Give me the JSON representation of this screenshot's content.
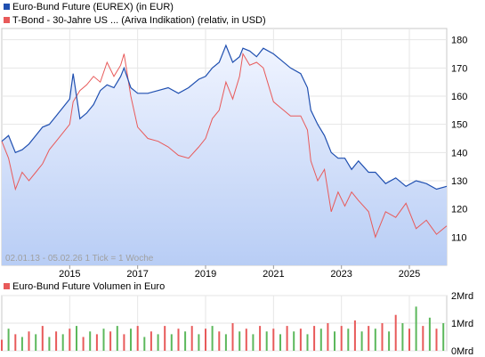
{
  "chart_data": [
    {
      "type": "line",
      "legend": [
        {
          "label": "Euro-Bund Future (EUREX)  (in EUR)",
          "color": "#1f4fb0"
        },
        {
          "label": "T-Bond - 30-Jahre US ...  (Ariva Indikation)  (relativ, in USD)",
          "color": "#e85a5a"
        }
      ],
      "x_labels": [
        "2015",
        "2017",
        "2019",
        "2021",
        "2023",
        "2025"
      ],
      "y_ticks": [
        110,
        120,
        130,
        140,
        150,
        160,
        170,
        180
      ],
      "ylim": [
        100,
        184
      ],
      "xlim": [
        2013.0,
        2026.1
      ],
      "grid": true,
      "note": "02.01.13 - 05.02.26    1 Tick = 1 Woche",
      "series": [
        {
          "name": "Euro-Bund Future (EUREX)",
          "color": "#1f4fb0",
          "x": [
            2013.0,
            2013.2,
            2013.4,
            2013.6,
            2013.8,
            2014.0,
            2014.2,
            2014.4,
            2014.6,
            2014.8,
            2015.0,
            2015.1,
            2015.3,
            2015.5,
            2015.7,
            2015.9,
            2016.1,
            2016.3,
            2016.5,
            2016.6,
            2016.8,
            2017.0,
            2017.3,
            2017.6,
            2017.9,
            2018.2,
            2018.5,
            2018.8,
            2019.0,
            2019.2,
            2019.4,
            2019.6,
            2019.8,
            2020.0,
            2020.1,
            2020.3,
            2020.5,
            2020.7,
            2021.0,
            2021.2,
            2021.5,
            2021.8,
            2022.0,
            2022.1,
            2022.3,
            2022.5,
            2022.7,
            2022.9,
            2023.1,
            2023.3,
            2023.5,
            2023.8,
            2024.0,
            2024.3,
            2024.6,
            2024.9,
            2025.2,
            2025.5,
            2025.8,
            2026.1
          ],
          "y": [
            144,
            146,
            140,
            141,
            143,
            146,
            149,
            150,
            153,
            156,
            159,
            168,
            152,
            154,
            157,
            162,
            164,
            163,
            167,
            170,
            163,
            161,
            161,
            162,
            163,
            161,
            163,
            166,
            167,
            170,
            172,
            178,
            172,
            174,
            177,
            176,
            174,
            177,
            175,
            173,
            170,
            168,
            163,
            155,
            150,
            146,
            140,
            138,
            138,
            134,
            137,
            133,
            133,
            129,
            131,
            128,
            130,
            129,
            127,
            128
          ]
        },
        {
          "name": "T-Bond - 30-Jahre US ...",
          "color": "#e85a5a",
          "x": [
            2013.0,
            2013.2,
            2013.4,
            2013.6,
            2013.8,
            2014.0,
            2014.2,
            2014.4,
            2014.6,
            2014.8,
            2015.0,
            2015.1,
            2015.3,
            2015.5,
            2015.7,
            2015.9,
            2016.1,
            2016.3,
            2016.5,
            2016.6,
            2016.8,
            2017.0,
            2017.3,
            2017.6,
            2017.9,
            2018.2,
            2018.5,
            2018.8,
            2019.0,
            2019.2,
            2019.4,
            2019.6,
            2019.8,
            2020.0,
            2020.1,
            2020.3,
            2020.5,
            2020.7,
            2021.0,
            2021.2,
            2021.5,
            2021.8,
            2022.0,
            2022.1,
            2022.3,
            2022.5,
            2022.7,
            2022.9,
            2023.1,
            2023.3,
            2023.5,
            2023.8,
            2024.0,
            2024.3,
            2024.6,
            2024.9,
            2025.2,
            2025.5,
            2025.8,
            2026.1
          ],
          "y": [
            144,
            138,
            127,
            133,
            130,
            133,
            136,
            141,
            144,
            147,
            150,
            158,
            162,
            164,
            167,
            165,
            172,
            167,
            171,
            175,
            160,
            149,
            145,
            144,
            142,
            139,
            138,
            142,
            145,
            152,
            155,
            165,
            159,
            167,
            175,
            171,
            172,
            170,
            158,
            156,
            153,
            153,
            148,
            137,
            130,
            134,
            119,
            126,
            121,
            126,
            123,
            119,
            110,
            119,
            117,
            122,
            113,
            116,
            111,
            114
          ]
        }
      ]
    },
    {
      "type": "bar",
      "legend": [
        {
          "label": "Euro-Bund Future Volumen in Euro",
          "color": "#e85a5a"
        }
      ],
      "y_ticks": [
        "0Mrd",
        "1Mrd",
        "2Mrd"
      ],
      "ylim": [
        0,
        2
      ],
      "series": [
        {
          "name": "Euro-Bund Future Volumen in Euro",
          "x": [
            2013.0,
            2013.2,
            2013.4,
            2013.6,
            2013.8,
            2014.0,
            2014.2,
            2014.4,
            2014.6,
            2014.8,
            2015.0,
            2015.2,
            2015.4,
            2015.6,
            2015.8,
            2016.0,
            2016.2,
            2016.4,
            2016.6,
            2016.8,
            2017.0,
            2017.2,
            2017.4,
            2017.6,
            2017.8,
            2018.0,
            2018.2,
            2018.4,
            2018.6,
            2018.8,
            2019.0,
            2019.2,
            2019.4,
            2019.6,
            2019.8,
            2020.0,
            2020.2,
            2020.4,
            2020.6,
            2020.8,
            2021.0,
            2021.2,
            2021.4,
            2021.6,
            2021.8,
            2022.0,
            2022.2,
            2022.4,
            2022.6,
            2022.8,
            2023.0,
            2023.2,
            2023.4,
            2023.6,
            2023.8,
            2024.0,
            2024.2,
            2024.4,
            2024.6,
            2024.8,
            2025.0,
            2025.2,
            2025.4,
            2025.6,
            2025.8,
            2026.0
          ],
          "values": [
            0.4,
            0.8,
            0.6,
            0.5,
            0.7,
            0.6,
            0.9,
            0.5,
            0.7,
            0.6,
            0.8,
            0.9,
            0.5,
            0.7,
            0.6,
            0.8,
            0.7,
            0.9,
            0.6,
            0.8,
            0.9,
            0.5,
            0.7,
            0.6,
            0.9,
            0.6,
            0.8,
            0.7,
            0.9,
            0.6,
            0.8,
            0.9,
            0.7,
            0.6,
            1.0,
            0.7,
            0.8,
            0.6,
            0.9,
            0.7,
            0.8,
            0.6,
            0.9,
            0.7,
            0.8,
            0.6,
            0.9,
            0.8,
            1.0,
            0.7,
            0.9,
            0.8,
            1.1,
            0.7,
            0.9,
            0.8,
            1.0,
            0.7,
            1.3,
            1.0,
            0.8,
            1.6,
            0.9,
            1.2,
            0.8,
            1.0
          ]
        }
      ]
    }
  ]
}
